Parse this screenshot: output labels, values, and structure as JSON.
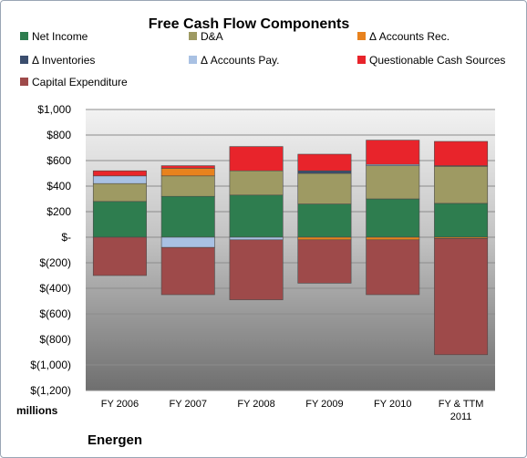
{
  "chart_data": {
    "type": "bar",
    "stacked": true,
    "title": "Free Cash Flow Components",
    "unit_label": "millions",
    "company_label": "Energen",
    "categories": [
      "FY 2006",
      "FY 2007",
      "FY 2008",
      "FY 2009",
      "FY 2010",
      "FY & TTM|2011"
    ],
    "ylim": [
      -1200,
      1000
    ],
    "yticks": [
      1000,
      800,
      600,
      400,
      200,
      0,
      -200,
      -400,
      -600,
      -800,
      -1000,
      -1200
    ],
    "ytick_labels": [
      "$1,000",
      "$800",
      "$600",
      "$400",
      "$200",
      "$-",
      "$(200)",
      "$(400)",
      "$(600)",
      "$(800)",
      "$(1,000)",
      "$(1,200)"
    ],
    "legend_position": "top",
    "series": [
      {
        "name": "Net Income",
        "color": "#2e7d4f",
        "values": [
          280,
          320,
          330,
          260,
          300,
          265
        ]
      },
      {
        "name": "D&A",
        "color": "#9e9a63",
        "values": [
          140,
          160,
          190,
          240,
          260,
          290
        ]
      },
      {
        "name": "Δ Accounts Rec.",
        "color": "#e8821e",
        "values": [
          0,
          60,
          0,
          -20,
          -20,
          -10
        ]
      },
      {
        "name": "Δ Inventories",
        "color": "#3b4e6e",
        "values": [
          0,
          0,
          0,
          20,
          0,
          0
        ]
      },
      {
        "name": "Δ Accounts Pay.",
        "color": "#a9c1e3",
        "values": [
          60,
          -80,
          -20,
          0,
          10,
          5
        ]
      },
      {
        "name": "Questionable Cash Sources",
        "color": "#e8242b",
        "values": [
          40,
          20,
          190,
          130,
          190,
          190
        ]
      },
      {
        "name": "Capital Expenditure",
        "color": "#9e4a4a",
        "values": [
          -300,
          -370,
          -470,
          -340,
          -430,
          -910
        ]
      }
    ]
  }
}
